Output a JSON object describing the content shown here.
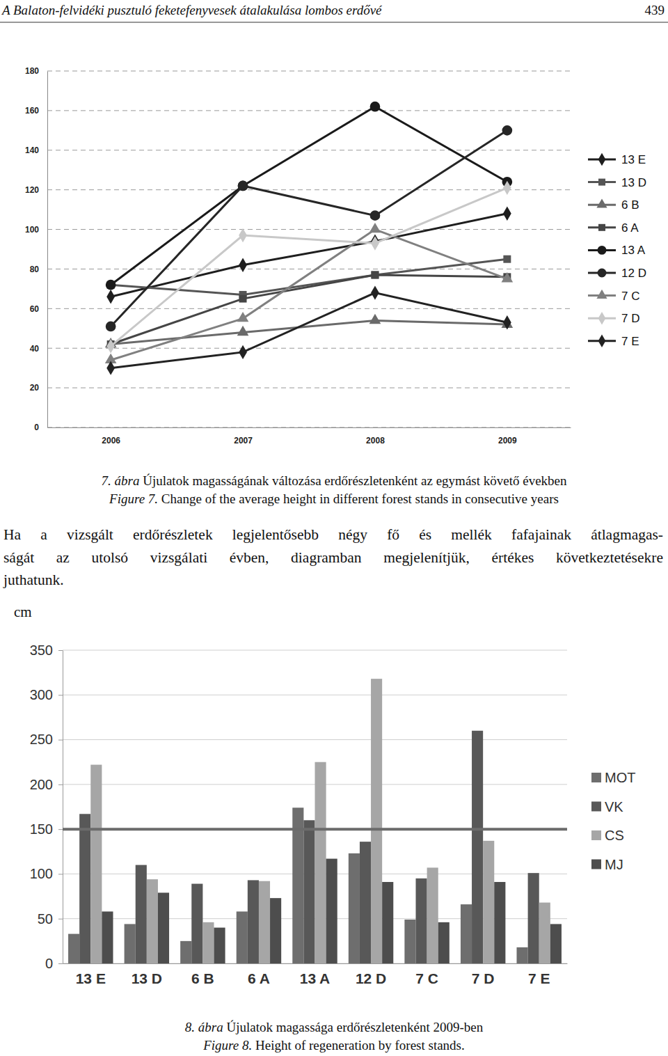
{
  "header": {
    "title": "A Balaton-felvidéki pusztuló feketefenyvesek átalakulása lombos erdővé",
    "page": "439"
  },
  "chart_data": [
    {
      "type": "line",
      "categories": [
        "2006",
        "2007",
        "2008",
        "2009"
      ],
      "series": [
        {
          "name": "13 E",
          "color": "#1e1e1e",
          "marker": "diamond",
          "values": [
            66,
            82,
            94,
            108
          ]
        },
        {
          "name": "13 D",
          "color": "#555555",
          "marker": "square",
          "values": [
            72,
            67,
            77,
            85
          ]
        },
        {
          "name": "6 B",
          "color": "#6a6a6a",
          "marker": "triangle",
          "values": [
            42,
            48,
            54,
            52
          ]
        },
        {
          "name": "6 A",
          "color": "#454545",
          "marker": "square",
          "values": [
            42,
            65,
            77,
            76
          ]
        },
        {
          "name": "13 A",
          "color": "#1a1a1a",
          "marker": "circle",
          "values": [
            72,
            122,
            162,
            124
          ]
        },
        {
          "name": "12 D",
          "color": "#262626",
          "marker": "circle",
          "values": [
            51,
            122,
            107,
            150
          ]
        },
        {
          "name": "7 C",
          "color": "#808080",
          "marker": "triangle",
          "values": [
            34,
            55,
            100,
            75
          ]
        },
        {
          "name": "7 D",
          "color": "#c8c8c8",
          "marker": "diamond",
          "values": [
            41,
            97,
            93,
            121
          ]
        },
        {
          "name": "7 E",
          "color": "#222222",
          "marker": "diamond",
          "values": [
            30,
            38,
            68,
            53
          ]
        }
      ],
      "ylim": [
        0,
        180
      ],
      "yticks": [
        0,
        20,
        40,
        60,
        80,
        100,
        120,
        140,
        160,
        180
      ],
      "grid": true,
      "legend": "right"
    },
    {
      "type": "bar",
      "ylabel": "cm",
      "categories": [
        "13 E",
        "13 D",
        "6 B",
        "6 A",
        "13 A",
        "12 D",
        "7 C",
        "7 D",
        "7 E"
      ],
      "series": [
        {
          "name": "MOT",
          "color": "#6e6e6e",
          "values": [
            33,
            44,
            25,
            58,
            174,
            123,
            49,
            66,
            18
          ]
        },
        {
          "name": "VK",
          "color": "#585858",
          "values": [
            167,
            110,
            89,
            93,
            160,
            136,
            95,
            260,
            101
          ]
        },
        {
          "name": "CS",
          "color": "#a6a6a6",
          "values": [
            222,
            94,
            46,
            92,
            225,
            318,
            107,
            137,
            68
          ]
        },
        {
          "name": "MJ",
          "color": "#4d4d4d",
          "values": [
            58,
            79,
            40,
            73,
            117,
            91,
            46,
            91,
            44
          ]
        }
      ],
      "threshold": 150,
      "ylim": [
        0,
        350
      ],
      "yticks": [
        0,
        50,
        100,
        150,
        200,
        250,
        300,
        350
      ],
      "grid": true,
      "legend": "right"
    }
  ],
  "captions": [
    {
      "hu_label": "7. ábra",
      "hu_text": "Újulatok magasságának változása erdőrészletenként az egymást követő években",
      "en_label": "Figure 7.",
      "en_text": "Change of the average height in different forest stands in consecutive years"
    },
    {
      "hu_label": "8. ábra",
      "hu_text": "Újulatok magassága erdőrészletenként 2009-ben",
      "en_label": "Figure 8.",
      "en_text": "Height of regeneration by forest stands."
    }
  ],
  "paragraph": [
    "Ha a vizsgált erdőrészletek legjelentősebb négy fő és mellék fafajainak átlagmagas-",
    "ságát az utolsó vizsgálati évben, diagramban megjelenítjük, értékes következtetésekre",
    "juthatunk."
  ]
}
